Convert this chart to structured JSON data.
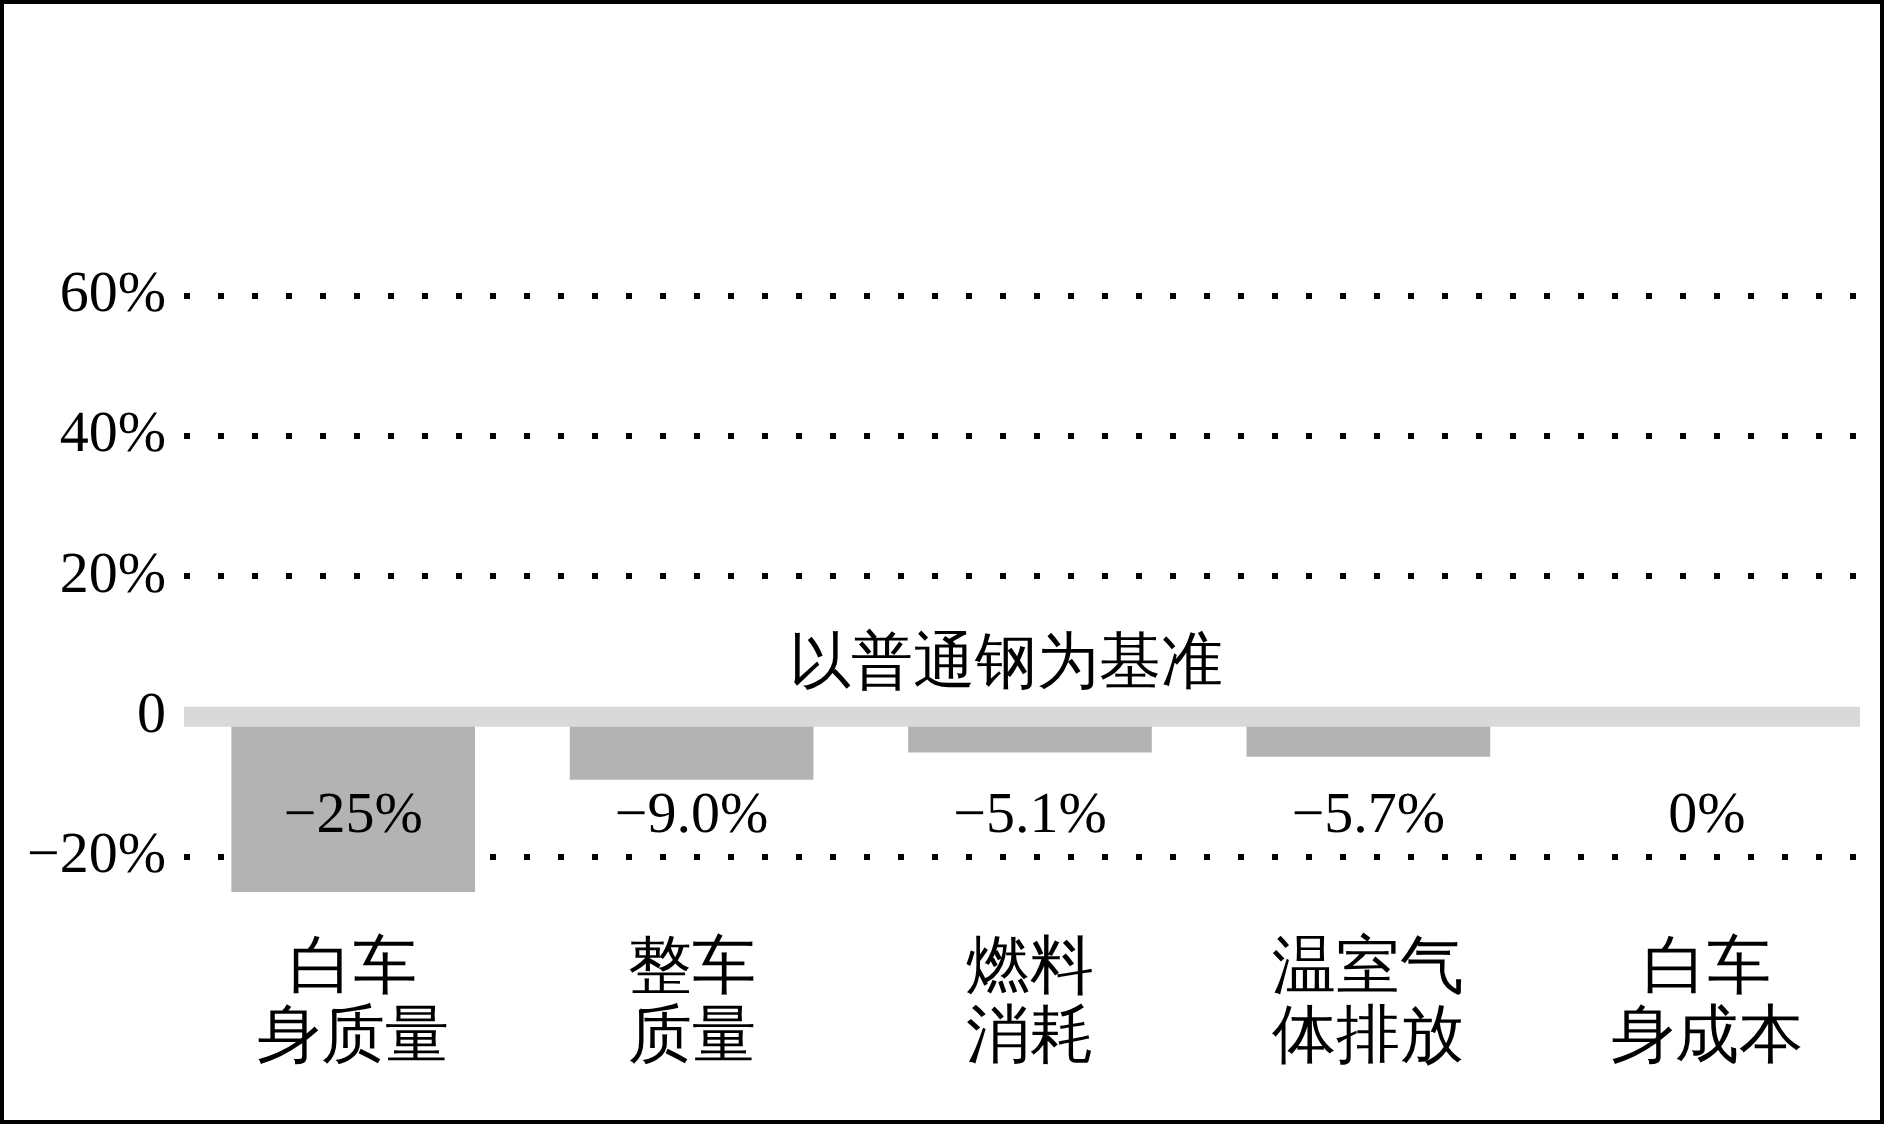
{
  "chart_data": {
    "type": "bar",
    "categories": [
      "白车身质量",
      "整车质量",
      "燃料消耗",
      "温室气体排放",
      "白车身成本"
    ],
    "values": [
      -25,
      -9.0,
      -5.1,
      -5.7,
      0
    ],
    "color": "#b3b3b3",
    "value_labels": [
      "−25%",
      "−9.0%",
      "−5.1%",
      "−5.7%",
      "0%"
    ],
    "ylim": [
      -25,
      60
    ],
    "yticks": [
      {
        "value": -20,
        "label": "−20%"
      },
      0,
      {
        "value": 20,
        "label": "20%"
      },
      {
        "value": 40,
        "label": "40%"
      },
      {
        "value": 60,
        "label": "60%"
      }
    ],
    "grid": "y",
    "ref_lines": [
      {
        "axis": "y",
        "value": 0,
        "label": "以普通钢为基准",
        "color": "#d9d9d9"
      }
    ]
  }
}
